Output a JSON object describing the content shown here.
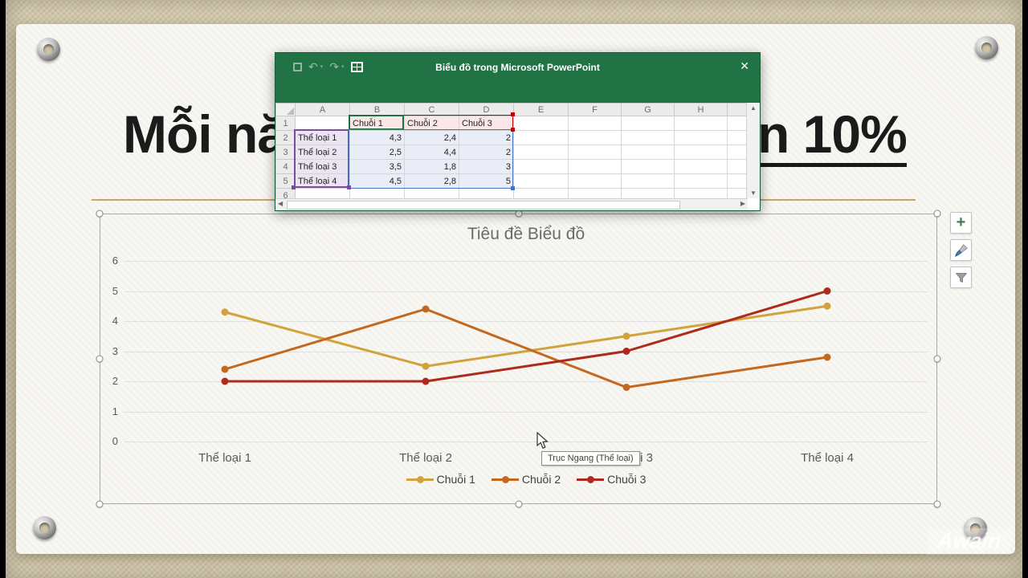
{
  "watermark": "Awain",
  "slide": {
    "title_left": "Mỗi nă",
    "title_right": "n 10%"
  },
  "excel_window": {
    "title": "Biểu đồ trong Microsoft PowerPoint",
    "close_glyph": "✕",
    "undo_glyph": "↶",
    "redo_glyph": "↷",
    "caret_glyph": "▾",
    "column_headers": [
      "A",
      "B",
      "C",
      "D",
      "E",
      "F",
      "G",
      "H",
      ""
    ],
    "row_headers": [
      "1",
      "2",
      "3",
      "4",
      "5",
      "6"
    ],
    "rows": [
      [
        "",
        "Chuỗi 1",
        "Chuỗi 2",
        "Chuỗi 3",
        "",
        "",
        "",
        "",
        ""
      ],
      [
        "Thể loại 1",
        "4,3",
        "2,4",
        "2",
        "",
        "",
        "",
        "",
        ""
      ],
      [
        "Thể loại 2",
        "2,5",
        "4,4",
        "2",
        "",
        "",
        "",
        "",
        ""
      ],
      [
        "Thể loại 3",
        "3,5",
        "1,8",
        "3",
        "",
        "",
        "",
        "",
        ""
      ],
      [
        "Thể loại 4",
        "4,5",
        "2,8",
        "5",
        "",
        "",
        "",
        "",
        ""
      ],
      [
        "",
        "",
        "",
        "",
        "",
        "",
        "",
        "",
        ""
      ]
    ]
  },
  "chart_tooltip": "Trục Ngang (Thể loại)",
  "side_buttons": [
    {
      "name": "chart-elements-button",
      "glyph": "+"
    },
    {
      "name": "chart-styles-button",
      "glyph": "brush"
    },
    {
      "name": "chart-filters-button",
      "glyph": "funnel"
    }
  ],
  "colors": {
    "excel_green": "#217346",
    "range_purple": "#7a4ba0",
    "range_red": "#c00000",
    "range_blue": "#4472c4",
    "divider_tan": "#cfa16b"
  },
  "chart_data": {
    "type": "line",
    "title": "Tiêu đề Biểu đồ",
    "categories": [
      "Thể loại 1",
      "Thể loại 2",
      "Thể loại 3",
      "Thể loại 4"
    ],
    "series": [
      {
        "name": "Chuỗi 1",
        "color": "#D2A33C",
        "values": [
          4.3,
          2.5,
          3.5,
          4.5
        ]
      },
      {
        "name": "Chuỗi 2",
        "color": "#C4681F",
        "values": [
          2.4,
          4.4,
          1.8,
          2.8
        ]
      },
      {
        "name": "Chuỗi 3",
        "color": "#AE2A1C",
        "values": [
          2,
          2,
          3,
          5
        ]
      }
    ],
    "ylim": [
      0,
      6
    ],
    "yticks": [
      0,
      1,
      2,
      3,
      4,
      5,
      6
    ],
    "grid": true,
    "legend_position": "bottom",
    "marker": "circle"
  }
}
